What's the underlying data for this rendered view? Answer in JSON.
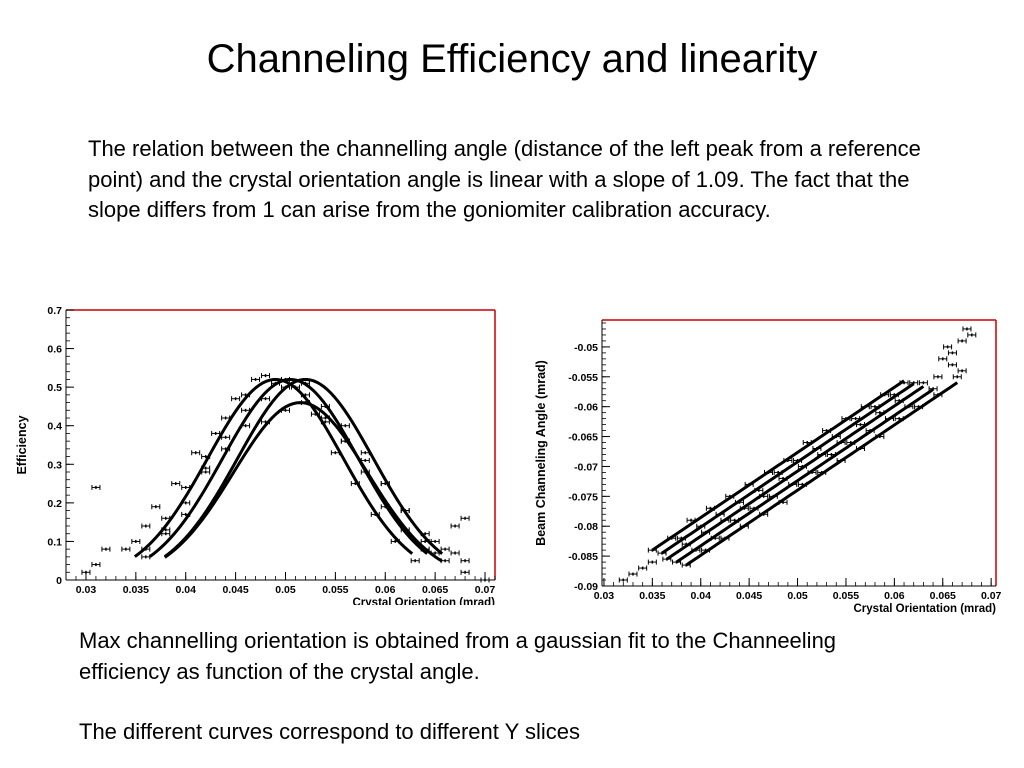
{
  "slide": {
    "title": "Channeling Efficiency and linearity",
    "intro": "The relation between the channelling angle (distance of the left peak from a reference point) and the crystal orientation angle is linear with a slope of 1.09. The fact that the slope  differs from 1 can arise from the goniomiter calibration accuracy.",
    "caption_1": "Max channelling orientation is obtained from a gaussian fit to the Channeeling efficiency as function of the crystal angle.",
    "caption_2": "The different curves correspond to different Y slices"
  },
  "colors": {
    "frame_highlight": "#cc0000",
    "ink": "#000000",
    "background": "#ffffff"
  },
  "chart_data": [
    {
      "type": "line",
      "xlabel": "Crystal Orientation (mrad)",
      "ylabel": "Efficiency",
      "xlim": [
        0.028,
        0.071
      ],
      "ylim": [
        0,
        0.7
      ],
      "xticks": [
        0.03,
        0.035,
        0.04,
        0.045,
        0.05,
        0.055,
        0.06,
        0.065,
        0.07
      ],
      "xtick_labels": [
        "0.03",
        "0.035",
        "0.04",
        "0.045",
        "0.05",
        "0.055",
        "0.06",
        "0.065",
        "0.07"
      ],
      "yticks": [
        0,
        0.1,
        0.2,
        0.3,
        0.4,
        0.5,
        0.6,
        0.7
      ],
      "ytick_labels": [
        "0",
        "0.1",
        "0.2",
        "0.3",
        "0.4",
        "0.5",
        "0.6",
        "0.7"
      ],
      "grid": false,
      "series": [
        {
          "fit": {
            "amplitude": 0.52,
            "mean": 0.049,
            "sigma": 0.0068,
            "range": [
              0.0349,
              0.0627
            ]
          },
          "points": [
            [
              0.035,
              0.1
            ],
            [
              0.037,
              0.19
            ],
            [
              0.039,
              0.25
            ],
            [
              0.041,
              0.33
            ],
            [
              0.043,
              0.38
            ],
            [
              0.045,
              0.47
            ],
            [
              0.047,
              0.52
            ],
            [
              0.049,
              0.51
            ],
            [
              0.051,
              0.5
            ],
            [
              0.053,
              0.43
            ],
            [
              0.055,
              0.33
            ],
            [
              0.057,
              0.25
            ],
            [
              0.059,
              0.17
            ],
            [
              0.061,
              0.1
            ],
            [
              0.063,
              0.05
            ]
          ]
        },
        {
          "fit": {
            "amplitude": 0.52,
            "mean": 0.0505,
            "sigma": 0.0068,
            "range": [
              0.0364,
              0.0642
            ]
          },
          "points": [
            [
              0.036,
              0.08
            ],
            [
              0.038,
              0.16
            ],
            [
              0.04,
              0.24
            ],
            [
              0.042,
              0.32
            ],
            [
              0.044,
              0.42
            ],
            [
              0.046,
              0.48
            ],
            [
              0.048,
              0.53
            ],
            [
              0.05,
              0.52
            ],
            [
              0.052,
              0.48
            ],
            [
              0.054,
              0.42
            ],
            [
              0.056,
              0.36
            ],
            [
              0.058,
              0.28
            ],
            [
              0.06,
              0.19
            ],
            [
              0.062,
              0.13
            ],
            [
              0.064,
              0.08
            ]
          ]
        },
        {
          "fit": {
            "amplitude": 0.52,
            "mean": 0.052,
            "sigma": 0.0068,
            "range": [
              0.0379,
              0.0657
            ]
          },
          "points": [
            [
              0.038,
              0.13
            ],
            [
              0.04,
              0.2
            ],
            [
              0.042,
              0.28
            ],
            [
              0.044,
              0.37
            ],
            [
              0.046,
              0.44
            ],
            [
              0.048,
              0.47
            ],
            [
              0.05,
              0.5
            ],
            [
              0.052,
              0.51
            ],
            [
              0.054,
              0.45
            ],
            [
              0.056,
              0.4
            ],
            [
              0.058,
              0.33
            ],
            [
              0.06,
              0.25
            ],
            [
              0.062,
              0.18
            ],
            [
              0.064,
              0.1
            ],
            [
              0.066,
              0.05
            ]
          ]
        },
        {
          "fit": {
            "amplitude": 0.46,
            "mean": 0.0515,
            "sigma": 0.0067,
            "range": [
              0.0379,
              0.0657
            ]
          },
          "points": [
            [
              0.036,
              0.06
            ],
            [
              0.038,
              0.12
            ],
            [
              0.04,
              0.17
            ],
            [
              0.042,
              0.29
            ],
            [
              0.044,
              0.34
            ],
            [
              0.046,
              0.4
            ],
            [
              0.048,
              0.41
            ],
            [
              0.05,
              0.44
            ],
            [
              0.052,
              0.46
            ],
            [
              0.054,
              0.41
            ],
            [
              0.056,
              0.36
            ],
            [
              0.058,
              0.31
            ],
            [
              0.06,
              0.25
            ],
            [
              0.062,
              0.18
            ],
            [
              0.064,
              0.12
            ],
            [
              0.066,
              0.08
            ],
            [
              0.068,
              0.05
            ]
          ]
        }
      ],
      "scatter": [
        [
          0.031,
          0.24
        ],
        [
          0.03,
          0.02
        ],
        [
          0.031,
          0.04
        ],
        [
          0.032,
          0.08
        ],
        [
          0.034,
          0.08
        ],
        [
          0.036,
          0.14
        ],
        [
          0.065,
          0.1
        ],
        [
          0.065,
          0.07
        ],
        [
          0.067,
          0.14
        ],
        [
          0.067,
          0.07
        ],
        [
          0.068,
          0.16
        ],
        [
          0.068,
          0.02
        ],
        [
          0.07,
          0.0
        ]
      ]
    },
    {
      "type": "line",
      "xlabel": "Crystal Orientation (mrad)",
      "ylabel": "Beam Channeling Angle (mrad)",
      "xlim": [
        0.0298,
        0.0705
      ],
      "ylim": [
        -0.09,
        -0.0455
      ],
      "xticks": [
        0.03,
        0.035,
        0.04,
        0.045,
        0.05,
        0.055,
        0.06,
        0.065,
        0.07
      ],
      "xtick_labels": [
        "0.03",
        "0.035",
        "0.04",
        "0.045",
        "0.05",
        "0.055",
        "0.06",
        "0.065",
        "0.07"
      ],
      "yticks": [
        -0.09,
        -0.085,
        -0.08,
        -0.075,
        -0.07,
        -0.065,
        -0.06,
        -0.055,
        -0.05
      ],
      "ytick_labels": [
        "-0.09",
        "-0.085",
        "-0.08",
        "-0.075",
        "-0.07",
        "-0.065",
        "-0.06",
        "-0.055",
        "-0.05"
      ],
      "grid": false,
      "slope": 1.09,
      "series": [
        {
          "fit": {
            "x0": 0.035,
            "y0": -0.084,
            "slope": 1.09,
            "range": [
              0.035,
              0.061
            ]
          },
          "points": [
            [
              0.035,
              -0.084
            ],
            [
              0.037,
              -0.082
            ],
            [
              0.039,
              -0.079
            ],
            [
              0.041,
              -0.077
            ],
            [
              0.043,
              -0.075
            ],
            [
              0.045,
              -0.073
            ],
            [
              0.047,
              -0.071
            ],
            [
              0.049,
              -0.069
            ],
            [
              0.051,
              -0.066
            ],
            [
              0.053,
              -0.064
            ],
            [
              0.055,
              -0.062
            ],
            [
              0.057,
              -0.06
            ],
            [
              0.059,
              -0.058
            ],
            [
              0.061,
              -0.056
            ]
          ]
        },
        {
          "fit": {
            "x0": 0.036,
            "y0": -0.0845,
            "slope": 1.09,
            "range": [
              0.036,
              0.062
            ]
          },
          "points": [
            [
              0.036,
              -0.0845
            ],
            [
              0.038,
              -0.082
            ],
            [
              0.04,
              -0.08
            ],
            [
              0.042,
              -0.078
            ],
            [
              0.044,
              -0.076
            ],
            [
              0.046,
              -0.074
            ],
            [
              0.048,
              -0.071
            ],
            [
              0.05,
              -0.069
            ],
            [
              0.052,
              -0.067
            ],
            [
              0.054,
              -0.065
            ],
            [
              0.056,
              -0.062
            ],
            [
              0.058,
              -0.06
            ],
            [
              0.06,
              -0.058
            ],
            [
              0.062,
              -0.056
            ]
          ]
        },
        {
          "fit": {
            "x0": 0.0365,
            "y0": -0.0855,
            "slope": 1.09,
            "range": [
              0.0365,
              0.063
            ]
          },
          "points": [
            [
              0.0365,
              -0.0855
            ],
            [
              0.0385,
              -0.083
            ],
            [
              0.0405,
              -0.081
            ],
            [
              0.0425,
              -0.079
            ],
            [
              0.0445,
              -0.077
            ],
            [
              0.0465,
              -0.075
            ],
            [
              0.0485,
              -0.072
            ],
            [
              0.0505,
              -0.07
            ],
            [
              0.0525,
              -0.068
            ],
            [
              0.0545,
              -0.066
            ],
            [
              0.0565,
              -0.063
            ],
            [
              0.0585,
              -0.061
            ],
            [
              0.0605,
              -0.059
            ],
            [
              0.063,
              -0.056
            ]
          ]
        },
        {
          "fit": {
            "x0": 0.0375,
            "y0": -0.086,
            "slope": 1.09,
            "range": [
              0.0375,
              0.064
            ]
          },
          "points": [
            [
              0.0375,
              -0.086
            ],
            [
              0.0395,
              -0.084
            ],
            [
              0.0415,
              -0.082
            ],
            [
              0.0435,
              -0.079
            ],
            [
              0.0455,
              -0.077
            ],
            [
              0.0475,
              -0.075
            ],
            [
              0.0495,
              -0.073
            ],
            [
              0.0515,
              -0.071
            ],
            [
              0.0535,
              -0.068
            ],
            [
              0.0555,
              -0.066
            ],
            [
              0.0575,
              -0.064
            ],
            [
              0.0595,
              -0.062
            ],
            [
              0.0615,
              -0.06
            ],
            [
              0.064,
              -0.057
            ]
          ]
        },
        {
          "fit": {
            "x0": 0.0385,
            "y0": -0.0865,
            "slope": 1.09,
            "range": [
              0.0385,
              0.0665
            ]
          },
          "points": [
            [
              0.0385,
              -0.0865
            ],
            [
              0.0405,
              -0.084
            ],
            [
              0.0425,
              -0.082
            ],
            [
              0.0445,
              -0.08
            ],
            [
              0.0465,
              -0.078
            ],
            [
              0.0485,
              -0.076
            ],
            [
              0.0505,
              -0.073
            ],
            [
              0.0525,
              -0.071
            ],
            [
              0.0545,
              -0.069
            ],
            [
              0.0565,
              -0.067
            ],
            [
              0.0585,
              -0.065
            ],
            [
              0.0605,
              -0.062
            ],
            [
              0.0625,
              -0.06
            ],
            [
              0.0645,
              -0.058
            ],
            [
              0.0665,
              -0.055
            ]
          ]
        }
      ],
      "scatter": [
        [
          0.032,
          -0.089
        ],
        [
          0.033,
          -0.088
        ],
        [
          0.034,
          -0.087
        ],
        [
          0.035,
          -0.086
        ],
        [
          0.065,
          -0.052
        ],
        [
          0.066,
          -0.051
        ],
        [
          0.066,
          -0.053
        ],
        [
          0.067,
          -0.054
        ],
        [
          0.067,
          -0.049
        ],
        [
          0.068,
          -0.048
        ],
        [
          0.0675,
          -0.047
        ],
        [
          0.0645,
          -0.055
        ],
        [
          0.0655,
          -0.05
        ]
      ]
    }
  ]
}
